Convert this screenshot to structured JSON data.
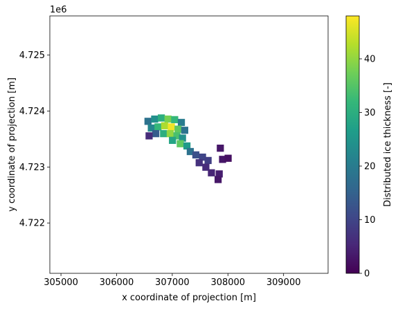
{
  "chart_data": {
    "type": "heatmap",
    "title": "",
    "xlabel": "x coordinate of projection [m]",
    "ylabel": "y coordinate of projection [m]",
    "y_offset_label": "1e6",
    "xlim": [
      304800,
      309800
    ],
    "ylim": [
      4721100,
      4725700
    ],
    "x_ticks": [
      305000,
      306000,
      307000,
      308000,
      309000
    ],
    "x_tick_labels": [
      "305000",
      "306000",
      "307000",
      "308000",
      "309000"
    ],
    "y_ticks": [
      4722000,
      4723000,
      4724000,
      4725000
    ],
    "y_tick_labels": [
      "4.722",
      "4.723",
      "4.724",
      "4.725"
    ],
    "colorbar": {
      "label": "Distributed ice thickness [-]",
      "min": 0,
      "max": 48,
      "ticks": [
        0,
        10,
        20,
        30,
        40
      ],
      "tick_labels": [
        "0",
        "10",
        "20",
        "30",
        "40"
      ],
      "colormap": "viridis"
    },
    "colormap_stops": [
      "#440154",
      "#482878",
      "#3e4989",
      "#31688e",
      "#26828e",
      "#1f9e89",
      "#35b779",
      "#6ece58",
      "#b5de2b",
      "#fde725"
    ],
    "cells": [
      {
        "x": 306560,
        "y": 4723820,
        "v": 18
      },
      {
        "x": 306680,
        "y": 4723860,
        "v": 24
      },
      {
        "x": 306800,
        "y": 4723880,
        "v": 30
      },
      {
        "x": 306920,
        "y": 4723860,
        "v": 38
      },
      {
        "x": 307040,
        "y": 4723850,
        "v": 32
      },
      {
        "x": 307160,
        "y": 4723800,
        "v": 20
      },
      {
        "x": 306620,
        "y": 4723700,
        "v": 22
      },
      {
        "x": 306740,
        "y": 4723720,
        "v": 32
      },
      {
        "x": 306860,
        "y": 4723740,
        "v": 42
      },
      {
        "x": 306980,
        "y": 4723720,
        "v": 47
      },
      {
        "x": 307100,
        "y": 4723680,
        "v": 36
      },
      {
        "x": 307220,
        "y": 4723660,
        "v": 18
      },
      {
        "x": 306700,
        "y": 4723600,
        "v": 14
      },
      {
        "x": 306840,
        "y": 4723600,
        "v": 30
      },
      {
        "x": 306960,
        "y": 4723600,
        "v": 40
      },
      {
        "x": 307080,
        "y": 4723560,
        "v": 34
      },
      {
        "x": 307180,
        "y": 4723520,
        "v": 24
      },
      {
        "x": 307000,
        "y": 4723480,
        "v": 28
      },
      {
        "x": 307140,
        "y": 4723420,
        "v": 36
      },
      {
        "x": 307260,
        "y": 4723380,
        "v": 26
      },
      {
        "x": 307320,
        "y": 4723280,
        "v": 18
      },
      {
        "x": 307420,
        "y": 4723220,
        "v": 12
      },
      {
        "x": 307540,
        "y": 4723180,
        "v": 10
      },
      {
        "x": 307640,
        "y": 4723120,
        "v": 9
      },
      {
        "x": 307480,
        "y": 4723080,
        "v": 7
      },
      {
        "x": 307600,
        "y": 4723000,
        "v": 6
      },
      {
        "x": 307700,
        "y": 4722900,
        "v": 5
      },
      {
        "x": 307840,
        "y": 4722880,
        "v": 4
      },
      {
        "x": 307820,
        "y": 4722780,
        "v": 3
      },
      {
        "x": 307900,
        "y": 4723140,
        "v": 3
      },
      {
        "x": 308000,
        "y": 4723160,
        "v": 2
      },
      {
        "x": 307860,
        "y": 4723340,
        "v": 3
      },
      {
        "x": 306580,
        "y": 4723560,
        "v": 6
      }
    ]
  }
}
